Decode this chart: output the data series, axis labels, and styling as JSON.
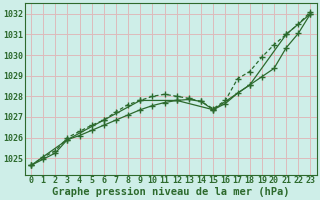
{
  "background_color": "#ceeee8",
  "grid_color": "#ddbbbb",
  "line_color": "#2d6a2d",
  "ylabel_values": [
    1025,
    1026,
    1027,
    1028,
    1029,
    1030,
    1031,
    1032
  ],
  "xlabel_values": [
    0,
    1,
    2,
    3,
    4,
    5,
    6,
    7,
    8,
    9,
    10,
    11,
    12,
    13,
    14,
    15,
    16,
    17,
    18,
    19,
    20,
    21,
    22,
    23
  ],
  "xlim": [
    -0.5,
    23.5
  ],
  "ylim": [
    1024.2,
    1032.5
  ],
  "xlabel": "Graphe pression niveau de la mer (hPa)",
  "series1_x": [
    0,
    1,
    2,
    3,
    4,
    5,
    6,
    7,
    8,
    9,
    10,
    11,
    12,
    13,
    14,
    15,
    16,
    17,
    18,
    19,
    20,
    21,
    22,
    23
  ],
  "series1_y": [
    1024.65,
    1024.95,
    1025.25,
    1025.9,
    1026.1,
    1026.35,
    1026.6,
    1026.85,
    1027.1,
    1027.35,
    1027.55,
    1027.7,
    1027.8,
    1027.85,
    1027.75,
    1027.35,
    1027.65,
    1028.15,
    1028.55,
    1028.95,
    1029.35,
    1030.35,
    1031.05,
    1032.0
  ],
  "series2_x": [
    0,
    1,
    2,
    3,
    4,
    5,
    6,
    7,
    8,
    9,
    10,
    11,
    12,
    13,
    14,
    15,
    16,
    17,
    18,
    19,
    20,
    21,
    22,
    23
  ],
  "series2_y": [
    1024.65,
    1025.05,
    1025.35,
    1026.0,
    1026.3,
    1026.6,
    1026.85,
    1027.25,
    1027.6,
    1027.8,
    1028.0,
    1028.1,
    1028.0,
    1027.9,
    1027.75,
    1027.4,
    1027.8,
    1028.85,
    1029.2,
    1029.9,
    1030.5,
    1031.0,
    1031.5,
    1032.1
  ],
  "series3_x": [
    0,
    3,
    6,
    9,
    12,
    15,
    18,
    21,
    23
  ],
  "series3_y": [
    1024.65,
    1025.9,
    1026.85,
    1027.8,
    1027.8,
    1027.35,
    1028.55,
    1031.0,
    1032.0
  ],
  "title_fontsize": 7.5,
  "tick_fontsize": 6.0
}
